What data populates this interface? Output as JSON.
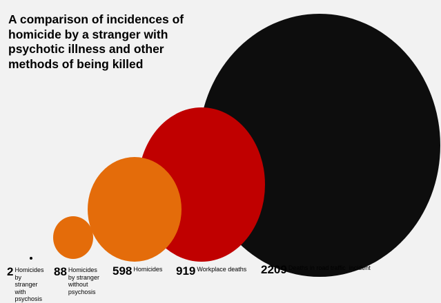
{
  "chart_data": {
    "type": "bubble",
    "title": "A comparison of incidences of homicide by a stranger with psychotic illness and other methods of being killed",
    "categories": [
      "Homicides by stranger with psychosis",
      "Homicides by stranger without psychosis",
      "Homicides",
      "Workplace deaths",
      "Deaths in road traffic  incident"
    ],
    "values": [
      2,
      88,
      598,
      919,
      2209
    ],
    "colors": [
      "#000000",
      "#e46c0a",
      "#e46c0a",
      "#c00000",
      "#0d0d0d"
    ],
    "background": "#f2f2f2"
  }
}
